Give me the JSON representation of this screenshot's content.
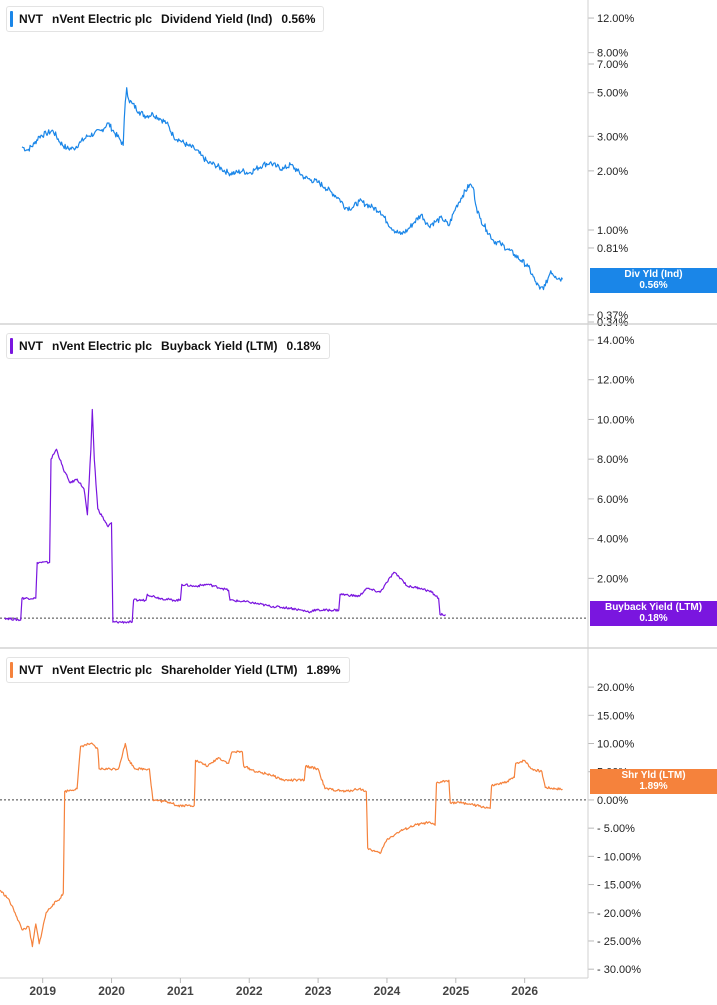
{
  "colors": {
    "blue": "#1a86e8",
    "purple": "#7a16df",
    "orange": "#f5823c",
    "axis": "#d0d0d0",
    "ref": "#444444"
  },
  "chart_data": [
    {
      "type": "line",
      "panel": "top",
      "ticker": "NVT",
      "company": "nVent Electric plc",
      "metric": "Dividend Yield (Ind)",
      "latest": "0.56%",
      "tag": {
        "line1": "Div Yld (Ind)",
        "line2": "0.56%"
      },
      "scale": "log",
      "ylim": [
        0.34,
        13.5
      ],
      "yticks": [
        {
          "v": 12,
          "label": "12.00%"
        },
        {
          "v": 8,
          "label": "8.00%"
        },
        {
          "v": 7,
          "label": "7.00%"
        },
        {
          "v": 5,
          "label": "5.00%"
        },
        {
          "v": 3,
          "label": "3.00%"
        },
        {
          "v": 2,
          "label": "2.00%"
        },
        {
          "v": 1,
          "label": "1.00%"
        },
        {
          "v": 0.81,
          "label": "0.81%"
        },
        {
          "v": 0.37,
          "label": "0.37%"
        },
        {
          "v": 0.34,
          "label": "0.34%"
        }
      ],
      "points": [
        [
          2018.7,
          2.65
        ],
        [
          2018.78,
          2.55
        ],
        [
          2018.88,
          2.75
        ],
        [
          2018.95,
          3.0
        ],
        [
          2019.05,
          3.1
        ],
        [
          2019.15,
          3.2
        ],
        [
          2019.25,
          2.8
        ],
        [
          2019.35,
          2.6
        ],
        [
          2019.45,
          2.6
        ],
        [
          2019.55,
          2.8
        ],
        [
          2019.65,
          3.0
        ],
        [
          2019.75,
          3.1
        ],
        [
          2019.85,
          3.2
        ],
        [
          2019.95,
          3.5
        ],
        [
          2020.05,
          3.1
        ],
        [
          2020.12,
          2.9
        ],
        [
          2020.17,
          2.7
        ],
        [
          2020.2,
          4.5
        ],
        [
          2020.22,
          5.3
        ],
        [
          2020.25,
          4.6
        ],
        [
          2020.3,
          4.4
        ],
        [
          2020.4,
          4.0
        ],
        [
          2020.5,
          3.8
        ],
        [
          2020.6,
          3.9
        ],
        [
          2020.7,
          3.7
        ],
        [
          2020.8,
          3.5
        ],
        [
          2020.9,
          3.0
        ],
        [
          2021.0,
          2.85
        ],
        [
          2021.1,
          2.7
        ],
        [
          2021.2,
          2.6
        ],
        [
          2021.3,
          2.4
        ],
        [
          2021.4,
          2.2
        ],
        [
          2021.5,
          2.15
        ],
        [
          2021.6,
          2.05
        ],
        [
          2021.7,
          1.95
        ],
        [
          2021.8,
          1.95
        ],
        [
          2021.9,
          2.0
        ],
        [
          2022.0,
          1.95
        ],
        [
          2022.1,
          2.05
        ],
        [
          2022.2,
          2.15
        ],
        [
          2022.3,
          2.2
        ],
        [
          2022.4,
          2.1
        ],
        [
          2022.5,
          2.05
        ],
        [
          2022.6,
          2.15
        ],
        [
          2022.7,
          2.0
        ],
        [
          2022.8,
          1.85
        ],
        [
          2022.9,
          1.8
        ],
        [
          2023.0,
          1.75
        ],
        [
          2023.1,
          1.65
        ],
        [
          2023.2,
          1.55
        ],
        [
          2023.3,
          1.45
        ],
        [
          2023.4,
          1.3
        ],
        [
          2023.5,
          1.3
        ],
        [
          2023.6,
          1.4
        ],
        [
          2023.7,
          1.35
        ],
        [
          2023.8,
          1.3
        ],
        [
          2023.9,
          1.25
        ],
        [
          2024.0,
          1.1
        ],
        [
          2024.1,
          1.0
        ],
        [
          2024.2,
          0.95
        ],
        [
          2024.3,
          1.0
        ],
        [
          2024.4,
          1.1
        ],
        [
          2024.5,
          1.2
        ],
        [
          2024.6,
          1.05
        ],
        [
          2024.7,
          1.1
        ],
        [
          2024.8,
          1.15
        ],
        [
          2024.9,
          1.05
        ],
        [
          2025.0,
          1.3
        ],
        [
          2025.1,
          1.5
        ],
        [
          2025.2,
          1.7
        ],
        [
          2025.25,
          1.65
        ],
        [
          2025.3,
          1.3
        ],
        [
          2025.35,
          1.15
        ],
        [
          2025.45,
          1.0
        ],
        [
          2025.55,
          0.88
        ],
        [
          2025.65,
          0.85
        ],
        [
          2025.75,
          0.8
        ],
        [
          2025.85,
          0.75
        ],
        [
          2025.95,
          0.7
        ],
        [
          2026.05,
          0.65
        ],
        [
          2026.15,
          0.55
        ],
        [
          2026.22,
          0.5
        ],
        [
          2026.3,
          0.52
        ],
        [
          2026.38,
          0.62
        ],
        [
          2026.45,
          0.58
        ],
        [
          2026.55,
          0.56
        ]
      ]
    },
    {
      "type": "line",
      "panel": "middle",
      "ticker": "NVT",
      "company": "nVent Electric plc",
      "metric": "Buyback Yield (LTM)",
      "latest": "0.18%",
      "tag": {
        "line1": "Buyback Yield (LTM)",
        "line2": "0.18%"
      },
      "scale": "linear",
      "ylim": [
        -0.6,
        14.2
      ],
      "zero_line": 0,
      "yticks": [
        {
          "v": 14,
          "label": "14.00%"
        },
        {
          "v": 12,
          "label": "12.00%"
        },
        {
          "v": 10,
          "label": "10.00%"
        },
        {
          "v": 8,
          "label": "8.00%"
        },
        {
          "v": 6,
          "label": "6.00%"
        },
        {
          "v": 4,
          "label": "4.00%"
        },
        {
          "v": 2,
          "label": "2.00%"
        }
      ],
      "points": [
        [
          2018.45,
          0.0
        ],
        [
          2018.68,
          -0.1
        ],
        [
          2018.7,
          1.0
        ],
        [
          2018.9,
          1.0
        ],
        [
          2018.92,
          2.8
        ],
        [
          2019.1,
          2.8
        ],
        [
          2019.12,
          8.0
        ],
        [
          2019.2,
          8.5
        ],
        [
          2019.3,
          7.5
        ],
        [
          2019.4,
          6.8
        ],
        [
          2019.5,
          7.0
        ],
        [
          2019.6,
          6.5
        ],
        [
          2019.65,
          5.2
        ],
        [
          2019.7,
          8.5
        ],
        [
          2019.72,
          10.5
        ],
        [
          2019.75,
          8.0
        ],
        [
          2019.8,
          5.5
        ],
        [
          2019.9,
          4.9
        ],
        [
          2019.95,
          4.6
        ],
        [
          2020.0,
          4.8
        ],
        [
          2020.02,
          -0.2
        ],
        [
          2020.2,
          -0.2
        ],
        [
          2020.3,
          -0.2
        ],
        [
          2020.32,
          0.9
        ],
        [
          2020.5,
          0.9
        ],
        [
          2020.52,
          1.2
        ],
        [
          2020.7,
          1.0
        ],
        [
          2020.9,
          0.9
        ],
        [
          2021.0,
          0.9
        ],
        [
          2021.02,
          1.7
        ],
        [
          2021.2,
          1.6
        ],
        [
          2021.4,
          1.7
        ],
        [
          2021.6,
          1.5
        ],
        [
          2021.7,
          1.4
        ],
        [
          2021.72,
          0.9
        ],
        [
          2022.0,
          0.8
        ],
        [
          2022.3,
          0.6
        ],
        [
          2022.6,
          0.5
        ],
        [
          2022.9,
          0.3
        ],
        [
          2022.92,
          0.4
        ],
        [
          2023.3,
          0.4
        ],
        [
          2023.32,
          1.2
        ],
        [
          2023.6,
          1.1
        ],
        [
          2023.7,
          1.5
        ],
        [
          2023.9,
          1.3
        ],
        [
          2024.0,
          1.8
        ],
        [
          2024.1,
          2.3
        ],
        [
          2024.2,
          2.0
        ],
        [
          2024.3,
          1.6
        ],
        [
          2024.5,
          1.5
        ],
        [
          2024.65,
          1.3
        ],
        [
          2024.75,
          1.0
        ],
        [
          2024.77,
          0.18
        ],
        [
          2024.85,
          0.18
        ]
      ]
    },
    {
      "type": "line",
      "panel": "bottom",
      "ticker": "NVT",
      "company": "nVent Electric plc",
      "metric": "Shareholder Yield (LTM)",
      "latest": "1.89%",
      "tag": {
        "line1": "Shr Yld (LTM)",
        "line2": "1.89%"
      },
      "scale": "linear",
      "ylim": [
        -30.5,
        22.5
      ],
      "zero_line": 0,
      "yticks": [
        {
          "v": 20,
          "label": "20.00%"
        },
        {
          "v": 15,
          "label": "15.00%"
        },
        {
          "v": 10,
          "label": "10.00%"
        },
        {
          "v": 5,
          "label": "5.00%"
        },
        {
          "v": 0,
          "label": "0.00%"
        },
        {
          "v": -5,
          "label": "- 5.00%"
        },
        {
          "v": -10,
          "label": "- 10.00%"
        },
        {
          "v": -15,
          "label": "- 15.00%"
        },
        {
          "v": -20,
          "label": "- 20.00%"
        },
        {
          "v": -25,
          "label": "- 25.00%"
        },
        {
          "v": -30,
          "label": "- 30.00%"
        }
      ],
      "points": [
        [
          2018.38,
          -16.0
        ],
        [
          2018.5,
          -17.5
        ],
        [
          2018.6,
          -20.0
        ],
        [
          2018.7,
          -23.0
        ],
        [
          2018.8,
          -22.5
        ],
        [
          2018.85,
          -26.0
        ],
        [
          2018.9,
          -22.0
        ],
        [
          2018.95,
          -25.5
        ],
        [
          2019.05,
          -20.0
        ],
        [
          2019.15,
          -18.5
        ],
        [
          2019.25,
          -17.5
        ],
        [
          2019.3,
          -16.5
        ],
        [
          2019.32,
          1.5
        ],
        [
          2019.5,
          2.0
        ],
        [
          2019.55,
          9.5
        ],
        [
          2019.7,
          10.0
        ],
        [
          2019.8,
          9.0
        ],
        [
          2019.82,
          5.5
        ],
        [
          2020.05,
          5.5
        ],
        [
          2020.1,
          5.5
        ],
        [
          2020.2,
          10.0
        ],
        [
          2020.25,
          7.0
        ],
        [
          2020.35,
          5.5
        ],
        [
          2020.55,
          5.5
        ],
        [
          2020.6,
          0.0
        ],
        [
          2020.9,
          -0.5
        ],
        [
          2020.92,
          -1.0
        ],
        [
          2021.2,
          -1.0
        ],
        [
          2021.22,
          7.0
        ],
        [
          2021.4,
          6.0
        ],
        [
          2021.55,
          7.5
        ],
        [
          2021.7,
          6.5
        ],
        [
          2021.75,
          8.5
        ],
        [
          2021.9,
          8.5
        ],
        [
          2021.92,
          6.0
        ],
        [
          2022.1,
          5.0
        ],
        [
          2022.3,
          4.5
        ],
        [
          2022.5,
          3.5
        ],
        [
          2022.8,
          3.5
        ],
        [
          2022.82,
          6.0
        ],
        [
          2023.0,
          5.5
        ],
        [
          2023.1,
          2.0
        ],
        [
          2023.4,
          1.5
        ],
        [
          2023.6,
          2.0
        ],
        [
          2023.7,
          1.5
        ],
        [
          2023.72,
          -8.5
        ],
        [
          2023.8,
          -9.0
        ],
        [
          2023.9,
          -9.5
        ],
        [
          2024.0,
          -7.0
        ],
        [
          2024.2,
          -5.5
        ],
        [
          2024.4,
          -4.5
        ],
        [
          2024.6,
          -4.0
        ],
        [
          2024.7,
          -4.5
        ],
        [
          2024.72,
          3.0
        ],
        [
          2024.9,
          3.5
        ],
        [
          2024.92,
          -0.5
        ],
        [
          2025.1,
          -0.5
        ],
        [
          2025.3,
          -1.0
        ],
        [
          2025.5,
          -1.5
        ],
        [
          2025.52,
          2.5
        ],
        [
          2025.7,
          3.0
        ],
        [
          2025.85,
          4.0
        ],
        [
          2025.87,
          6.5
        ],
        [
          2026.0,
          7.0
        ],
        [
          2026.1,
          5.5
        ],
        [
          2026.25,
          5.0
        ],
        [
          2026.3,
          2.2
        ],
        [
          2026.45,
          2.0
        ],
        [
          2026.55,
          1.9
        ]
      ]
    }
  ],
  "x_axis": {
    "ticks": [
      {
        "v": 2019,
        "label": "2019"
      },
      {
        "v": 2020,
        "label": "2020"
      },
      {
        "v": 2021,
        "label": "2021"
      },
      {
        "v": 2022,
        "label": "2022"
      },
      {
        "v": 2023,
        "label": "2023"
      },
      {
        "v": 2024,
        "label": "2024"
      },
      {
        "v": 2025,
        "label": "2025"
      },
      {
        "v": 2026,
        "label": "2026"
      }
    ]
  }
}
